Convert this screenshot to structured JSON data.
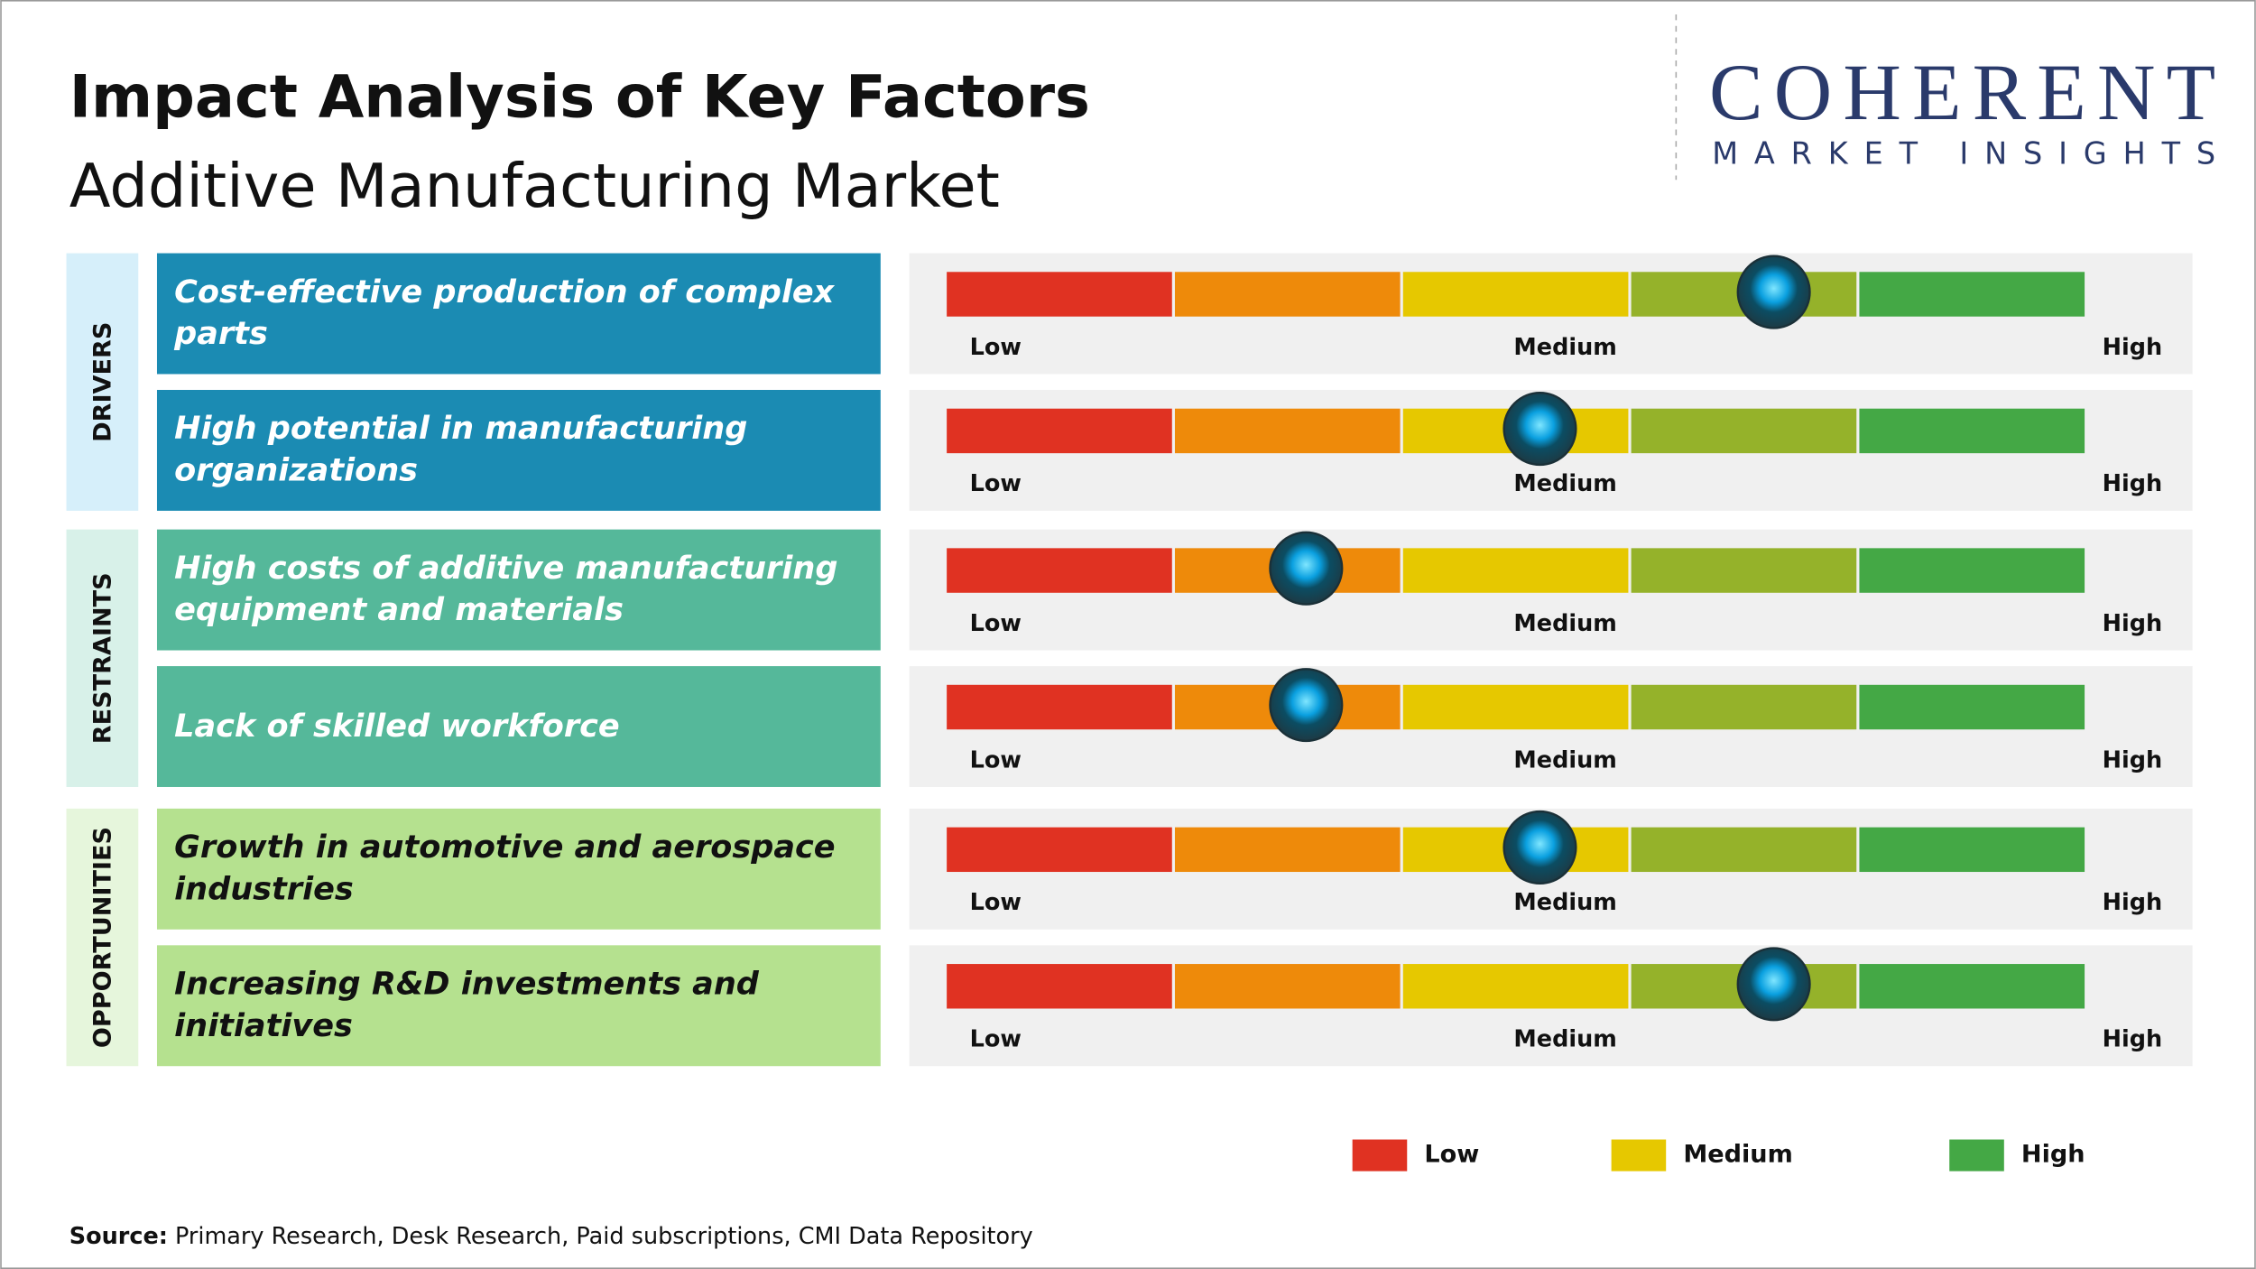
{
  "header": {
    "title": "Impact Analysis of Key Factors",
    "subtitle": "Additive Manufacturing Market"
  },
  "logo": {
    "name": "COHERENT",
    "tagline": "MARKET INSIGHTS"
  },
  "scale": {
    "labels": [
      "Low",
      "Medium",
      "High"
    ],
    "colors": [
      "#e03222",
      "#ee8a0a",
      "#e6c800",
      "#95b22a",
      "#44a845"
    ],
    "xlim": [
      0,
      100
    ]
  },
  "groups": [
    {
      "name": "DRIVERS",
      "color": "#d6effa",
      "box_color": "#1b8bb3",
      "text_color": "#ffffff",
      "factors": [
        {
          "label": "Cost-effective production of complex parts",
          "impact": 72.5
        },
        {
          "label": "High potential in manufacturing organizations",
          "impact": 52
        }
      ]
    },
    {
      "name": "RESTRAINTS",
      "color": "#d8f1e9",
      "box_color": "#55b89a",
      "text_color": "#ffffff",
      "factors": [
        {
          "label": "High costs of additive manufacturing equipment and materials",
          "impact": 31.5
        },
        {
          "label": "Lack of skilled workforce",
          "impact": 31.5
        }
      ]
    },
    {
      "name": "OPPORTUNITIES",
      "color": "#e6f6dc",
      "box_color": "#b5e18f",
      "text_color": "#111111",
      "factors": [
        {
          "label": "Growth in automotive and aerospace industries",
          "impact": 52
        },
        {
          "label": "Increasing R&D investments and initiatives",
          "impact": 72.5
        }
      ]
    }
  ],
  "legend": [
    {
      "name": "Low",
      "color": "#e03222"
    },
    {
      "name": "Medium",
      "color": "#e6c800"
    },
    {
      "name": "High",
      "color": "#44a845"
    }
  ],
  "source": {
    "label": "Source:",
    "text": "Primary Research, Desk Research, Paid subscriptions, CMI Data Repository"
  }
}
